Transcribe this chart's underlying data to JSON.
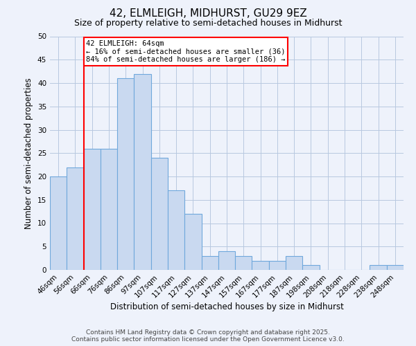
{
  "title": "42, ELMLEIGH, MIDHURST, GU29 9EZ",
  "subtitle": "Size of property relative to semi-detached houses in Midhurst",
  "xlabel": "Distribution of semi-detached houses by size in Midhurst",
  "ylabel": "Number of semi-detached properties",
  "bar_labels": [
    "46sqm",
    "56sqm",
    "66sqm",
    "76sqm",
    "86sqm",
    "97sqm",
    "107sqm",
    "117sqm",
    "127sqm",
    "137sqm",
    "147sqm",
    "157sqm",
    "167sqm",
    "177sqm",
    "187sqm",
    "198sqm",
    "208sqm",
    "218sqm",
    "228sqm",
    "238sqm",
    "248sqm"
  ],
  "bar_values": [
    20,
    22,
    26,
    26,
    41,
    42,
    24,
    17,
    12,
    3,
    4,
    3,
    2,
    2,
    3,
    1,
    0,
    0,
    0,
    1,
    1
  ],
  "bar_color": "#c9d9f0",
  "bar_edge_color": "#6fa8dc",
  "ylim": [
    0,
    50
  ],
  "yticks": [
    0,
    5,
    10,
    15,
    20,
    25,
    30,
    35,
    40,
    45,
    50
  ],
  "property_label": "42 ELMLEIGH: 64sqm",
  "annotation_line1": "← 16% of semi-detached houses are smaller (36)",
  "annotation_line2": "84% of semi-detached houses are larger (186) →",
  "red_line_bin_index": 2,
  "footnote1": "Contains HM Land Registry data © Crown copyright and database right 2025.",
  "footnote2": "Contains public sector information licensed under the Open Government Licence v3.0.",
  "background_color": "#eef2fb",
  "plot_background": "#eef2fb",
  "grid_color": "#b8c8e0",
  "title_fontsize": 11,
  "subtitle_fontsize": 9,
  "axis_label_fontsize": 8.5,
  "tick_fontsize": 7.5,
  "annotation_fontsize": 7.5,
  "footnote_fontsize": 6.5
}
